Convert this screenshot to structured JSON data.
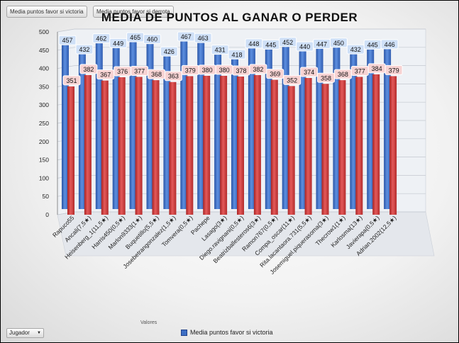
{
  "filters": {
    "favor_label": "Media puntos favor si victoria",
    "derrota_label": "Media puntos favor si derrota"
  },
  "axis_field_label": "Valores",
  "row_field": {
    "label": "Jugador",
    "arrow": "▼"
  },
  "colors": {
    "victoria": "#3d6fc4",
    "derrota": "#d03a3a",
    "victoria_label_bg": "#cfe0f7",
    "derrota_label_bg": "#f7d3d3"
  },
  "chart_data": {
    "type": "bar",
    "title": "MEDIA DE PUNTOS AL GANAR O PERDER",
    "xlabel": "",
    "ylabel": "",
    "ylim": [
      0,
      500
    ],
    "yticks": [
      0,
      50,
      100,
      150,
      200,
      250,
      300,
      350,
      400,
      450,
      500
    ],
    "legend": [
      "Media puntos favor si victoria"
    ],
    "categories": [
      "Rapuco55",
      "Ancali(7,5★)",
      "Heisenberg_1(11,5★)",
      "Harris450(0,5★)",
      "Marlon9333(1★)",
      "Buquetillo(5,5★)",
      "Josebetrangonzalez(1,5★)",
      "Tomvera(0,5★)",
      "Pachepe",
      "Lasago(3★)",
      "Diego.ravignani(0,5★)",
      "Beatrizballesteros6(3★)",
      "Ramon767(0,5★)",
      "Compa_oscar(11★)",
      "Rita.lacantaora.731(5,5★)",
      "Josemiguel.piquerasoma(3★)",
      "Thecrow1(1★)",
      "Karlosma(13★)",
      "Javierapa(0,5★)",
      "Adrian.2002(12,5★)"
    ],
    "series": [
      {
        "name": "Media puntos favor si victoria",
        "values": [
          457,
          432,
          462,
          449,
          465,
          460,
          426,
          467,
          463,
          431,
          418,
          448,
          445,
          452,
          440,
          447,
          450,
          432,
          445,
          446
        ]
      },
      {
        "name": "Media puntos favor si derrota",
        "values": [
          351,
          382,
          367,
          376,
          377,
          368,
          363,
          379,
          380,
          380,
          378,
          382,
          369,
          352,
          374,
          358,
          368,
          377,
          384,
          379
        ]
      }
    ]
  }
}
